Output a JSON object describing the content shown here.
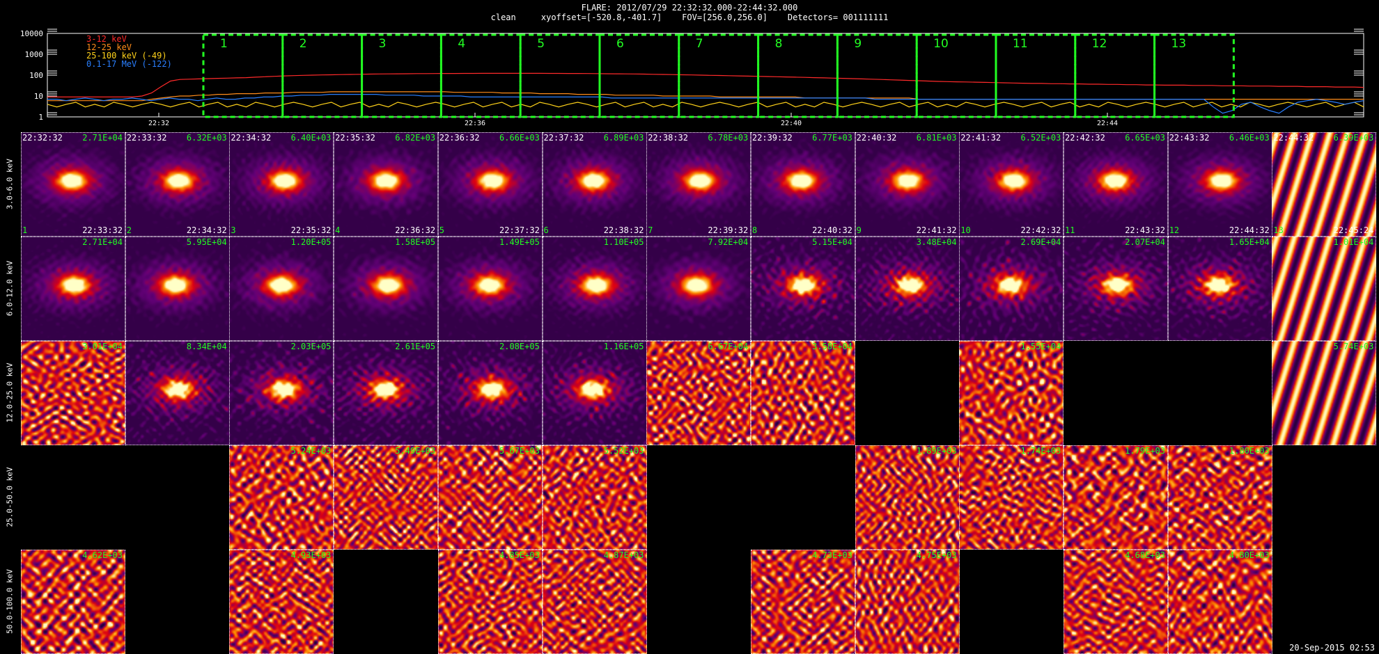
{
  "header": {
    "line1": "FLARE: 2012/07/29 22:32:32.000-22:44:32.000",
    "line2": "clean     xyoffset=[-520.8,-401.7]    FOV=[256.0,256.0]    Detectors= 001111111"
  },
  "footer": {
    "timestamp": "20-Sep-2015 02:53"
  },
  "colors": {
    "3-12": "#ff2a2a",
    "12-25": "#ff8c1a",
    "25-100": "#ffd21a",
    "0.1-17": "#2a7fff",
    "interval_box": "#22ff22",
    "label_green": "#22ff22"
  },
  "chart_data": [
    {
      "type": "line",
      "ylog": true,
      "ylim": [
        1,
        10000
      ],
      "yticks": [
        "10000",
        "1000",
        "100",
        "10",
        "1"
      ],
      "xticks": [
        "22:32",
        "22:36",
        "22:40",
        "22:44"
      ],
      "series": [
        {
          "name": "3-12 keV",
          "color": "#ff2a2a",
          "values": [
            9,
            9,
            9,
            9,
            9,
            9,
            9,
            9,
            9,
            9,
            10,
            14,
            28,
            52,
            62,
            64,
            66,
            68,
            70,
            72,
            74,
            76,
            80,
            84,
            88,
            92,
            95,
            98,
            100,
            102,
            104,
            106,
            108,
            110,
            112,
            114,
            115,
            116,
            117,
            118,
            118,
            119,
            120,
            120,
            121,
            121,
            122,
            122,
            122,
            122,
            122,
            122,
            122,
            121,
            121,
            120,
            120,
            119,
            118,
            117,
            116,
            115,
            114,
            112,
            110,
            108,
            106,
            104,
            102,
            100,
            98,
            96,
            94,
            92,
            90,
            88,
            86,
            84,
            82,
            80,
            78,
            76,
            74,
            72,
            70,
            68,
            66,
            64,
            62,
            60,
            58,
            56,
            54,
            52,
            50,
            49,
            48,
            47,
            46,
            45,
            44,
            43,
            42,
            41,
            40,
            40,
            39,
            39,
            38,
            38,
            37,
            37,
            36,
            36,
            35,
            35,
            34,
            34,
            33,
            33,
            33,
            32,
            32,
            32,
            31,
            31,
            31,
            30,
            30,
            30,
            29,
            29,
            29,
            28,
            28,
            28,
            27,
            27,
            27,
            26
          ]
        },
        {
          "name": "12-25 keV",
          "color": "#ff8c1a",
          "values": [
            6,
            6,
            6,
            6,
            6,
            6,
            6,
            6,
            6,
            6,
            6,
            7,
            8,
            9,
            10,
            10,
            11,
            11,
            12,
            12,
            13,
            13,
            13,
            14,
            14,
            14,
            15,
            15,
            15,
            15,
            16,
            16,
            16,
            16,
            16,
            16,
            16,
            16,
            16,
            16,
            16,
            16,
            16,
            15,
            15,
            15,
            15,
            15,
            14,
            14,
            14,
            14,
            13,
            13,
            13,
            13,
            12,
            12,
            12,
            12,
            11,
            11,
            11,
            11,
            11,
            10,
            10,
            10,
            10,
            10,
            10,
            9,
            9,
            9,
            9,
            9,
            9,
            9,
            9,
            9,
            8,
            8,
            8,
            8,
            8,
            8,
            8,
            8,
            8,
            8,
            8,
            8,
            7,
            7,
            7,
            7,
            7,
            7,
            7,
            7,
            7,
            7,
            7,
            7,
            7,
            7,
            7,
            7,
            7,
            7,
            7,
            7,
            7,
            7,
            7,
            7,
            7,
            7,
            7,
            7,
            7,
            7,
            7,
            7,
            7,
            7,
            7,
            7,
            7,
            7,
            7,
            7,
            7,
            7,
            7,
            7,
            7,
            7,
            7,
            7
          ]
        },
        {
          "name": "25-100 keV (-49)",
          "color": "#ffd21a",
          "values": [
            4,
            3,
            4,
            5,
            3,
            4,
            3,
            5,
            4,
            3,
            4,
            5,
            4,
            3,
            4,
            5,
            3,
            4,
            5,
            3,
            4,
            3,
            5,
            4,
            3,
            4,
            5,
            4,
            3,
            4,
            5,
            3,
            4,
            5,
            3,
            4,
            3,
            5,
            4,
            3,
            4,
            5,
            4,
            3,
            4,
            5,
            3,
            4,
            5,
            3,
            4,
            3,
            5,
            4,
            3,
            4,
            5,
            4,
            3,
            4,
            5,
            3,
            4,
            5,
            3,
            4,
            3,
            5,
            4,
            3,
            4,
            5,
            4,
            3,
            4,
            5,
            3,
            4,
            5,
            3,
            4,
            3,
            5,
            4,
            3,
            4,
            5,
            4,
            3,
            4,
            5,
            3,
            4,
            5,
            3,
            4,
            3,
            5,
            4,
            3,
            4,
            5,
            4,
            3,
            4,
            5,
            3,
            4,
            5,
            3,
            4,
            3,
            5,
            4,
            3,
            4,
            5,
            4,
            3,
            4,
            5,
            3,
            4,
            5,
            3,
            4,
            3,
            5,
            4,
            3,
            4,
            5,
            4,
            3,
            4,
            5,
            3,
            4,
            5,
            3
          ]
        },
        {
          "name": "0.1-17 MeV (-122)",
          "color": "#2a7fff",
          "values": [
            7,
            7,
            6,
            7,
            8,
            7,
            6,
            7,
            7,
            8,
            7,
            6,
            7,
            8,
            7,
            7,
            6,
            7,
            8,
            7,
            7,
            8,
            8,
            9,
            9,
            10,
            10,
            11,
            11,
            11,
            12,
            12,
            12,
            12,
            12,
            12,
            11,
            11,
            11,
            11,
            10,
            10,
            10,
            10,
            10,
            9,
            9,
            9,
            9,
            9,
            9,
            9,
            9,
            9,
            9,
            9,
            9,
            9,
            9,
            9,
            8,
            8,
            8,
            8,
            8,
            8,
            8,
            8,
            8,
            8,
            8,
            8,
            8,
            8,
            8,
            8,
            8,
            8,
            8,
            8,
            8,
            8,
            8,
            8,
            8,
            8,
            8,
            8,
            7,
            7,
            7,
            7,
            7,
            7,
            7,
            7,
            7,
            7,
            7,
            7,
            7,
            7,
            7,
            7,
            7,
            7,
            7,
            7,
            7,
            7,
            7,
            7,
            7,
            7,
            7,
            7,
            7,
            7,
            7,
            7,
            7,
            7,
            7,
            7,
            3,
            1.5,
            2,
            4,
            5,
            3,
            2,
            1.5,
            3,
            5,
            6,
            7,
            6,
            5,
            4,
            5,
            6
          ]
        }
      ],
      "intervals": [
        "1",
        "2",
        "3",
        "4",
        "5",
        "6",
        "7",
        "8",
        "9",
        "10",
        "11",
        "12",
        "13"
      ]
    },
    {
      "type": "heatmap",
      "energy_bands": [
        "3.0-6.0 keV",
        "6.0-12.0 keV",
        "12.0-25.0 keV",
        "25.0-50.0 keV",
        "50.0-100.0 keV"
      ],
      "interval_start_times": [
        "22:32:32",
        "22:33:32",
        "22:34:32",
        "22:35:32",
        "22:36:32",
        "22:37:32",
        "22:38:32",
        "22:39:32",
        "22:40:32",
        "22:41:32",
        "22:42:32",
        "22:43:32",
        "22:44:32"
      ],
      "interval_end_times": [
        "22:33:32",
        "22:34:32",
        "22:35:32",
        "22:36:32",
        "22:37:32",
        "22:38:32",
        "22:39:32",
        "22:40:32",
        "22:41:32",
        "22:42:32",
        "22:43:32",
        "22:44:32",
        "22:45:24"
      ],
      "interval_numbers": [
        "1",
        "2",
        "3",
        "4",
        "5",
        "6",
        "7",
        "8",
        "9",
        "10",
        "11",
        "12",
        "13"
      ],
      "peak_values": [
        [
          "2.71E+04",
          "6.32E+03",
          "6.40E+03",
          "6.82E+03",
          "6.66E+03",
          "6.89E+03",
          "6.78E+03",
          "6.77E+03",
          "6.81E+03",
          "6.52E+03",
          "6.65E+03",
          "6.46E+03",
          "6.39E+03"
        ],
        [
          "2.71E+04",
          "5.95E+04",
          "1.20E+05",
          "1.58E+05",
          "1.49E+05",
          "1.10E+05",
          "7.92E+04",
          "5.15E+04",
          "3.48E+04",
          "2.69E+04",
          "2.07E+04",
          "1.65E+04",
          "1.01E+04"
        ],
        [
          "3.01E+04",
          "8.34E+04",
          "2.03E+05",
          "2.61E+05",
          "2.08E+05",
          "1.16E+05",
          "6.67E+04",
          "3.58E+04",
          "",
          "1.55E+04",
          "",
          "",
          "5.74E+03"
        ],
        [
          "",
          "",
          "5.24E+03",
          "5.49E+03",
          "5.67E+03",
          "5.52E+03",
          "",
          "",
          "1.89E+03",
          "1.74E+03",
          "1.79E+03",
          "1.80E+03",
          ""
        ],
        [
          "4.62E+03",
          "",
          "4.93E+03",
          "",
          "4.85E+03",
          "4.87E+03",
          "",
          "4.73E+03",
          "4.75E+03",
          "",
          "4.68E+03",
          "4.80E+03",
          ""
        ]
      ]
    }
  ]
}
